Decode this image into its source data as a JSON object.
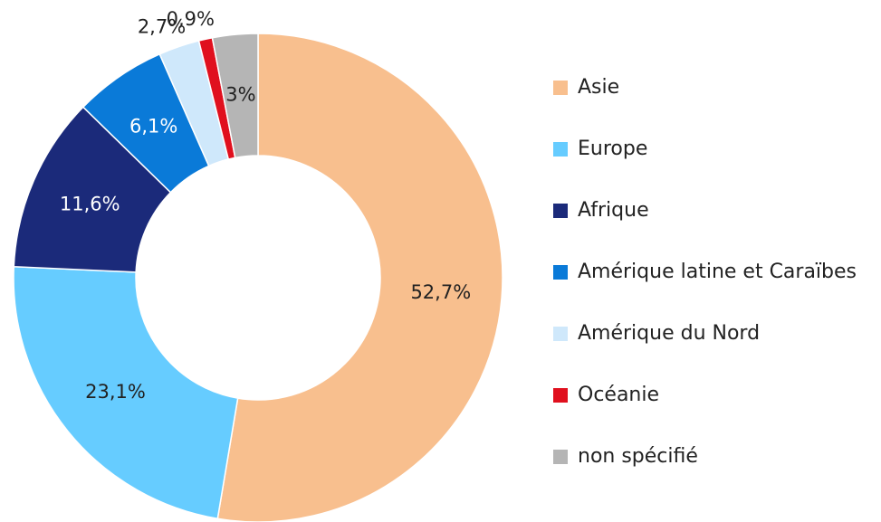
{
  "chart_data": {
    "type": "donut",
    "categories": [
      "Asie",
      "Europe",
      "Afrique",
      "Amérique latine et Caraïbes",
      "Amérique du Nord",
      "Océanie",
      "non spécifié"
    ],
    "values": [
      52.7,
      23.1,
      11.6,
      6.1,
      2.7,
      0.9,
      3
    ],
    "value_labels": [
      "52,7%",
      "23,1%",
      "11,6%",
      "6,1%",
      "2,7%",
      "0,9%",
      "3%"
    ],
    "colors": [
      "#f8bf8e",
      "#66ccff",
      "#1b2a7a",
      "#0a7ad8",
      "#cfe8fb",
      "#e0101e",
      "#b5b5b5"
    ],
    "legend": "right"
  }
}
